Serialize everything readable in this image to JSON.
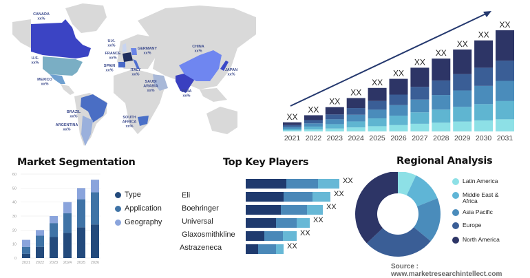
{
  "map": {
    "land_color": "#d9d9d9",
    "countries": [
      {
        "name": "CANADA",
        "value": "xx%",
        "color": "#3b44c4"
      },
      {
        "name": "U.S.",
        "value": "xx%",
        "color": "#7aaec4"
      },
      {
        "name": "MEXICO",
        "value": "xx%",
        "color": "#6fa0d0"
      },
      {
        "name": "BRAZIL",
        "value": "xx%",
        "color": "#4a6ec4"
      },
      {
        "name": "ARGENTINA",
        "value": "xx%",
        "color": "#9ab0dc"
      },
      {
        "name": "U.K.",
        "value": "xx%",
        "color": "#c8d4f0"
      },
      {
        "name": "FRANCE",
        "value": "xx%",
        "color": "#1f2e5e"
      },
      {
        "name": "SPAIN",
        "value": "xx%",
        "color": "#4a6ac8"
      },
      {
        "name": "ITALY",
        "value": "xx%",
        "color": "#5070d0"
      },
      {
        "name": "GERMANY",
        "value": "xx%",
        "color": "#6a84e6"
      },
      {
        "name": "SAUDI ARABIA",
        "value": "xx%",
        "color": "#a8b8d8"
      },
      {
        "name": "SOUTH AFRICA",
        "value": "xx%",
        "color": "#4a70c8"
      },
      {
        "name": "INDIA",
        "value": "xx%",
        "color": "#3a40c0"
      },
      {
        "name": "CHINA",
        "value": "xx%",
        "color": "#6f86f0"
      },
      {
        "name": "JAPAN",
        "value": "xx%",
        "color": "#3a48c8"
      }
    ]
  },
  "chart_data": [
    {
      "type": "bar",
      "stacked": true,
      "categories": [
        "2021",
        "2022",
        "2023",
        "2024",
        "2025",
        "2026",
        "2027",
        "2028",
        "2029",
        "2030",
        "2031"
      ],
      "relative_totals": [
        0.09,
        0.16,
        0.24,
        0.33,
        0.43,
        0.52,
        0.63,
        0.72,
        0.81,
        0.9,
        1.0
      ],
      "data_labels": [
        "XX",
        "XX",
        "XX",
        "XX",
        "XX",
        "XX",
        "XX",
        "XX",
        "XX",
        "XX",
        "XX"
      ],
      "segment_colors": [
        "#8de0e6",
        "#5fb5d1",
        "#4a8cbb",
        "#3a5e96",
        "#2d3566"
      ],
      "trend_arrow": true,
      "arrow_color": "#24386e"
    },
    {
      "type": "bar",
      "stacked": true,
      "title": "Market Segmentation",
      "categories": [
        "2021",
        "2022",
        "2023",
        "2024",
        "2025",
        "2026"
      ],
      "ylim": [
        0,
        60
      ],
      "yticks": [
        0,
        10,
        20,
        30,
        40,
        50,
        60
      ],
      "grid": true,
      "legend_placement": "right",
      "series": [
        {
          "name": "Type",
          "values": [
            3,
            8,
            15,
            18,
            22,
            24
          ],
          "color": "#234a7c"
        },
        {
          "name": "Application",
          "values": [
            5,
            8,
            10,
            14,
            20,
            23
          ],
          "color": "#3f73a6"
        },
        {
          "name": "Geography",
          "values": [
            5,
            4,
            5,
            8,
            8,
            9
          ],
          "color": "#8aa4dc"
        }
      ]
    },
    {
      "type": "bar",
      "orientation": "horizontal",
      "stacked": true,
      "title": "Top Key Players",
      "categories": [
        "",
        "Eli",
        "Boehringer",
        "Universal",
        "Glaxosmithkline",
        "Astrazeneca"
      ],
      "data_labels": [
        "XX",
        "XX",
        "XX",
        "XX",
        "XX",
        "XX"
      ],
      "segment_colors": [
        "#1f3a6e",
        "#4a88b8",
        "#67b8d6"
      ],
      "series_values": [
        [
          59,
          46,
          31
        ],
        [
          55,
          42,
          26
        ],
        [
          51,
          38,
          23
        ],
        [
          44,
          30,
          19
        ],
        [
          27,
          27,
          20
        ],
        [
          18,
          26,
          11
        ]
      ]
    },
    {
      "type": "pie",
      "donut": true,
      "title": "Regional Analysis",
      "legend_placement": "right",
      "slices": [
        {
          "name": "Latin America",
          "value": 7,
          "color": "#8de0e6"
        },
        {
          "name": "Middle East & Africa",
          "value": 12,
          "color": "#5fb5d6"
        },
        {
          "name": "Asia Pacific",
          "value": 17,
          "color": "#4a8cbb"
        },
        {
          "name": "Europe",
          "value": 27,
          "color": "#3a5e96"
        },
        {
          "name": "North America",
          "value": 37,
          "color": "#2d3566"
        }
      ]
    }
  ],
  "source": "Source : www.marketresearchintellect.com"
}
